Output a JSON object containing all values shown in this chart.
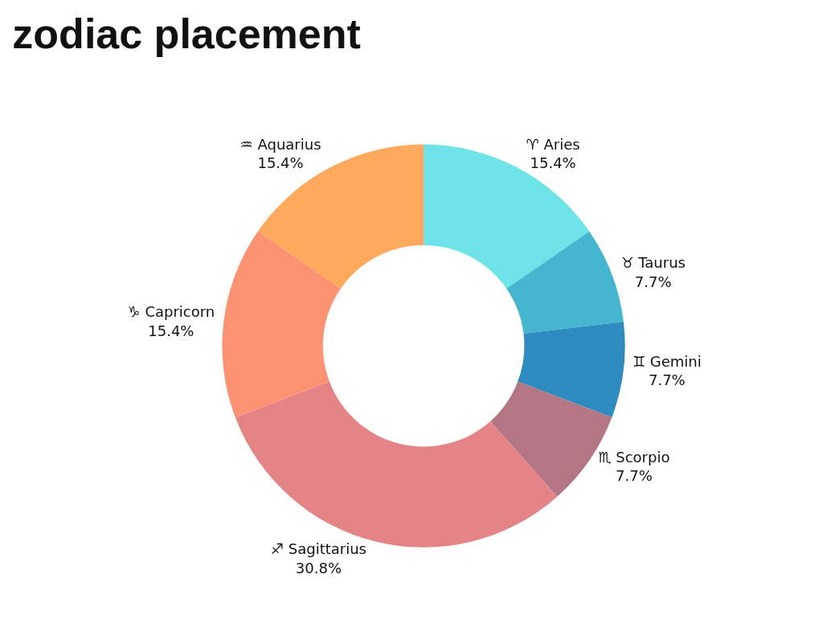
{
  "chart_data": {
    "type": "donut",
    "title": "zodiac placement",
    "categories": [
      "♈ Aries",
      "♉ Taurus",
      "♊ Gemini",
      "♏ Scorpio",
      "♐ Sagittarius",
      "♑ Capricorn",
      "♒ Aquarius"
    ],
    "values": [
      15.4,
      7.7,
      7.7,
      7.7,
      30.8,
      15.4,
      15.4
    ],
    "value_labels": [
      "15.4%",
      "7.7%",
      "7.7%",
      "7.7%",
      "30.8%",
      "15.4%",
      "15.4%"
    ],
    "colors": [
      "#6ee3e8",
      "#45b6d0",
      "#2e8bbf",
      "#b47585",
      "#e48486",
      "#fd9273",
      "#fea95b"
    ],
    "legend": false
  }
}
